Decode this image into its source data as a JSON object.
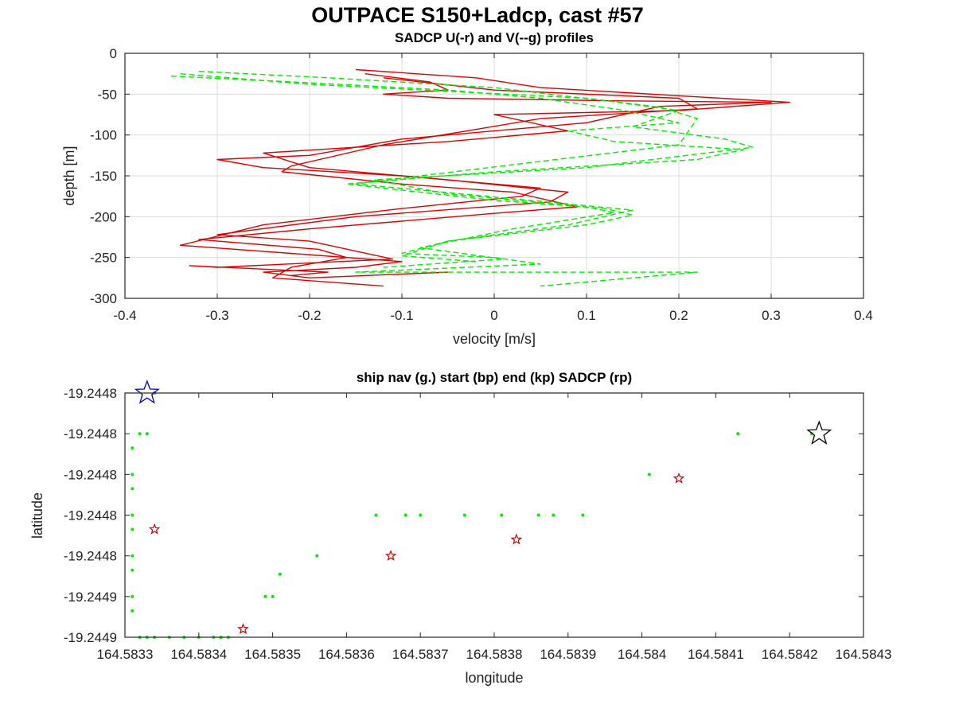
{
  "figure": {
    "title": "OUTPACE S150+Ladcp, cast #57"
  },
  "chart_data": [
    {
      "type": "line",
      "title": "SADCP U(-r) and V(--g) profiles",
      "xlabel": "velocity [m/s]",
      "ylabel": "depth [m]",
      "xlim": [
        -0.4,
        0.4
      ],
      "ylim": [
        -300,
        0
      ],
      "xticks": [
        -0.4,
        -0.3,
        -0.2,
        -0.1,
        0,
        0.1,
        0.2,
        0.3,
        0.4
      ],
      "xtick_labels": [
        "-0.4",
        "-0.3",
        "-0.2",
        "-0.1",
        "0",
        "0.1",
        "0.2",
        "0.3",
        "0.4"
      ],
      "yticks": [
        0,
        -50,
        -100,
        -150,
        -200,
        -250,
        -300
      ],
      "ytick_labels": [
        "0",
        "-50",
        "-100",
        "-150",
        "-200",
        "-250",
        "-300"
      ],
      "grid": true,
      "series": [
        {
          "color": "#e00000",
          "style": "solid",
          "x": [
            -0.14,
            -0.07,
            -0.05,
            -0.12,
            -0.05,
            0.12,
            0.3,
            0.18,
            0.1,
            -0.1,
            -0.2,
            -0.3,
            -0.25,
            -0.1,
            0.05,
            0.03,
            -0.1,
            -0.25,
            -0.34,
            -0.22,
            -0.1,
            -0.15,
            -0.25,
            -0.2,
            -0.05
          ],
          "y": [
            -25,
            -35,
            -45,
            -50,
            -55,
            -58,
            -60,
            -65,
            -85,
            -105,
            -125,
            -130,
            -140,
            -150,
            -165,
            -175,
            -190,
            -210,
            -235,
            -245,
            -255,
            -262,
            -268,
            -275,
            -268
          ]
        },
        {
          "color": "#e00000",
          "style": "solid",
          "x": [
            -0.15,
            -0.02,
            0.05,
            0.32,
            0.2,
            0.0,
            0.08,
            -0.05,
            -0.25,
            -0.2,
            -0.05,
            0.08,
            0.06,
            -0.15,
            -0.3,
            -0.2,
            -0.11,
            -0.3,
            -0.33,
            -0.18,
            -0.22
          ],
          "y": [
            -20,
            -30,
            -42,
            -60,
            -70,
            -75,
            -95,
            -108,
            -122,
            -140,
            -155,
            -170,
            -182,
            -200,
            -222,
            -230,
            -252,
            -262,
            -260,
            -268,
            -272
          ]
        },
        {
          "color": "#e00000",
          "style": "solid",
          "x": [
            -0.12,
            0.0,
            0.2,
            0.22,
            0.05,
            -0.12,
            -0.22,
            -0.23,
            -0.1,
            0.02,
            0.09,
            0.0,
            -0.2,
            -0.32,
            -0.19,
            -0.16,
            -0.22,
            -0.24,
            -0.12
          ],
          "y": [
            -30,
            -45,
            -55,
            -68,
            -80,
            -112,
            -138,
            -145,
            -160,
            -170,
            -188,
            -196,
            -215,
            -228,
            -240,
            -250,
            -262,
            -275,
            -285
          ]
        },
        {
          "color": "#00ee00",
          "style": "dashed",
          "x": [
            -0.35,
            -0.22,
            -0.05,
            0.05,
            0.13,
            0.15,
            0.2,
            0.08,
            0.13,
            0.27,
            0.22,
            0.0,
            -0.16,
            0.0,
            0.12,
            0.15,
            0.1,
            -0.05,
            -0.1,
            0.0,
            0.05,
            -0.15,
            0.22,
            0.05
          ],
          "y": [
            -28,
            -35,
            -45,
            -55,
            -68,
            -72,
            -85,
            -95,
            -108,
            -118,
            -130,
            -145,
            -160,
            -180,
            -190,
            -198,
            -210,
            -230,
            -245,
            -250,
            -258,
            -268,
            -268,
            -285
          ]
        },
        {
          "color": "#00ee00",
          "style": "dashed",
          "x": [
            -0.32,
            -0.18,
            0.0,
            0.12,
            0.2,
            0.15,
            0.25,
            0.28,
            0.1,
            -0.13,
            -0.05,
            0.1,
            0.13,
            0.02,
            -0.08,
            0.01,
            -0.12
          ],
          "y": [
            -22,
            -30,
            -42,
            -58,
            -70,
            -90,
            -105,
            -115,
            -140,
            -155,
            -172,
            -188,
            -195,
            -215,
            -238,
            -252,
            -262
          ]
        },
        {
          "color": "#00ee00",
          "style": "dashed",
          "x": [
            -0.34,
            -0.2,
            0.1,
            0.18,
            0.22,
            0.2,
            -0.08,
            -0.15,
            0.02,
            0.15,
            0.08,
            -0.05,
            -0.1,
            -0.02
          ],
          "y": [
            -25,
            -38,
            -55,
            -66,
            -80,
            -112,
            -150,
            -160,
            -178,
            -192,
            -210,
            -230,
            -248,
            -255
          ]
        }
      ]
    },
    {
      "type": "scatter",
      "title": "ship nav (g.) start (bp) end (kp) SADCP (rp)",
      "xlabel": "longitude",
      "ylabel": "latitude",
      "xlim": [
        164.5833,
        164.5843
      ],
      "ylim": [
        -19.24488,
        -19.24476
      ],
      "xticks": [
        164.5833,
        164.5834,
        164.5835,
        164.5836,
        164.5837,
        164.5838,
        164.5839,
        164.584,
        164.5841,
        164.5842,
        164.5843
      ],
      "xtick_labels": [
        "164.5833",
        "164.5834",
        "164.5835",
        "164.5836",
        "164.5837",
        "164.5838",
        "164.5839",
        "164.584",
        "164.5841",
        "164.5842",
        "164.5843"
      ],
      "yticks": [
        -19.24476,
        -19.24478,
        -19.2448,
        -19.24482,
        -19.24484,
        -19.24486,
        -19.24488
      ],
      "ytick_labels": [
        "-19.2448",
        "-19.2448",
        "-19.2448",
        "-19.2448",
        "-19.2448",
        "-19.2449",
        "-19.2449"
      ],
      "grid": false,
      "series": [
        {
          "color": "#00ee00",
          "marker": "dot",
          "x": [
            164.58334,
            164.58334,
            164.58332,
            164.58333,
            164.58331,
            164.58331,
            164.58331,
            164.58331,
            164.58331,
            164.58331,
            164.58331,
            164.58331,
            164.58331,
            164.58332,
            164.58333,
            164.58334,
            164.58336,
            164.58338,
            164.5834,
            164.58342,
            164.58343,
            164.58344,
            164.58349,
            164.5835,
            164.58351,
            164.58356,
            164.58364,
            164.58368,
            164.5837,
            164.58376,
            164.58381,
            164.58386,
            164.58388,
            164.58392,
            164.58401,
            164.58413,
            164.58423
          ],
          "y": [
            -19.24476,
            -19.24476,
            -19.24478,
            -19.24478,
            -19.244787,
            -19.2448,
            -19.244807,
            -19.24482,
            -19.244827,
            -19.24484,
            -19.244847,
            -19.24486,
            -19.244867,
            -19.24488,
            -19.24488,
            -19.24488,
            -19.24488,
            -19.24488,
            -19.24488,
            -19.24488,
            -19.24488,
            -19.24488,
            -19.24486,
            -19.24486,
            -19.244849,
            -19.24484,
            -19.24482,
            -19.24482,
            -19.24482,
            -19.24482,
            -19.24482,
            -19.24482,
            -19.24482,
            -19.24482,
            -19.2448,
            -19.24478,
            -19.24478
          ]
        },
        {
          "color": "#cc0000",
          "marker": "star-small",
          "x": [
            164.58334,
            164.58346,
            164.58366,
            164.58383,
            164.58405
          ],
          "y": [
            -19.244827,
            -19.244876,
            -19.24484,
            -19.244832,
            -19.244802
          ]
        },
        {
          "color": "#0000cc",
          "marker": "star-large",
          "label": "start",
          "x": [
            164.58333
          ],
          "y": [
            -19.24476
          ]
        },
        {
          "color": "#000000",
          "marker": "star-large",
          "label": "end",
          "x": [
            164.58424
          ],
          "y": [
            -19.24478
          ]
        }
      ]
    }
  ]
}
